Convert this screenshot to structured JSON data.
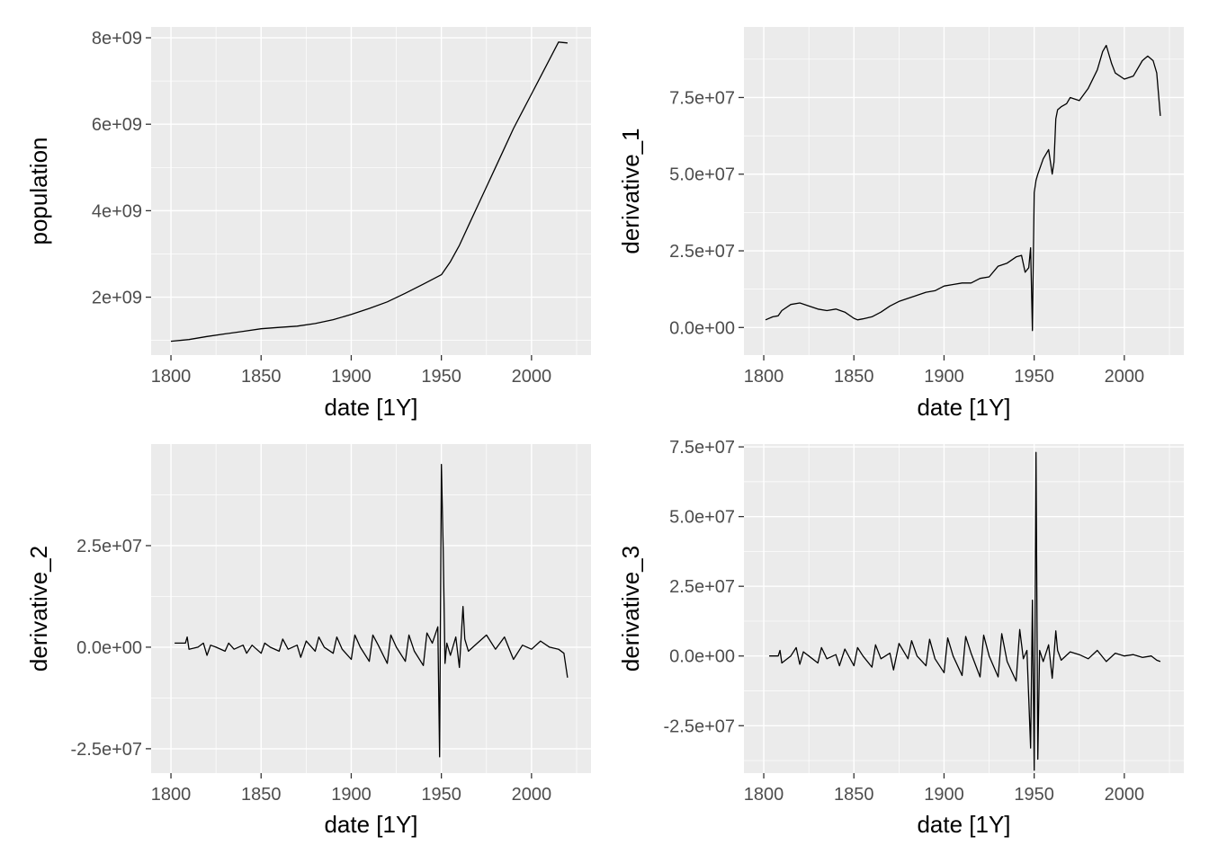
{
  "chart_data": [
    {
      "type": "line",
      "xlabel": "date [1Y]",
      "ylabel": "population",
      "xlim": [
        1789,
        2033
      ],
      "ylim": [
        660000000,
        8250000000
      ],
      "xticks": [
        1800,
        1850,
        1900,
        1950,
        2000
      ],
      "xtick_labels": [
        "1800",
        "1850",
        "1900",
        "1950",
        "2000"
      ],
      "yticks": [
        2000000000,
        4000000000,
        6000000000,
        8000000000
      ],
      "ytick_labels": [
        "2e+09",
        "4e+09",
        "6e+09",
        "8e+09"
      ],
      "grid": true,
      "series": [
        {
          "x": [
            1800,
            1810,
            1820,
            1830,
            1840,
            1850,
            1860,
            1870,
            1880,
            1890,
            1900,
            1910,
            1920,
            1930,
            1940,
            1950,
            1955,
            1960,
            1965,
            1970,
            1975,
            1980,
            1985,
            1990,
            1995,
            2000,
            2005,
            2010,
            2015,
            2020
          ],
          "y": [
            980000000,
            1020000000,
            1090000000,
            1150000000,
            1210000000,
            1270000000,
            1300000000,
            1330000000,
            1390000000,
            1480000000,
            1600000000,
            1740000000,
            1890000000,
            2090000000,
            2300000000,
            2520000000,
            2820000000,
            3200000000,
            3650000000,
            4100000000,
            4550000000,
            5000000000,
            5450000000,
            5900000000,
            6300000000,
            6700000000,
            7100000000,
            7500000000,
            7900000000,
            7880000000
          ]
        }
      ]
    },
    {
      "type": "line",
      "xlabel": "date [1Y]",
      "ylabel": "derivative_1",
      "xlim": [
        1789,
        2033
      ],
      "ylim": [
        -9000000,
        98000000
      ],
      "xticks": [
        1800,
        1850,
        1900,
        1950,
        2000
      ],
      "xtick_labels": [
        "1800",
        "1850",
        "1900",
        "1950",
        "2000"
      ],
      "yticks": [
        0,
        25000000,
        50000000,
        75000000
      ],
      "ytick_labels": [
        "0.0e+00",
        "2.5e+07",
        "5.0e+07",
        "7.5e+07"
      ],
      "grid": true,
      "series": [
        {
          "x": [
            1801,
            1805,
            1808,
            1810,
            1815,
            1820,
            1825,
            1830,
            1835,
            1840,
            1845,
            1850,
            1852,
            1855,
            1860,
            1865,
            1870,
            1875,
            1880,
            1885,
            1890,
            1895,
            1900,
            1905,
            1910,
            1915,
            1920,
            1925,
            1930,
            1935,
            1940,
            1943,
            1945,
            1947,
            1948,
            1949,
            1950,
            1951,
            1952,
            1955,
            1958,
            1960,
            1961,
            1962,
            1963,
            1965,
            1968,
            1970,
            1975,
            1980,
            1985,
            1988,
            1990,
            1993,
            1995,
            2000,
            2005,
            2010,
            2013,
            2016,
            2018,
            2020
          ],
          "y": [
            2500000,
            3500000,
            3800000,
            5500000,
            7500000,
            8000000,
            7000000,
            6000000,
            5500000,
            6000000,
            5000000,
            3000000,
            2500000,
            2800000,
            3500000,
            5000000,
            7000000,
            8500000,
            9500000,
            10500000,
            11500000,
            12000000,
            13500000,
            14000000,
            14500000,
            14500000,
            16000000,
            16500000,
            20000000,
            21000000,
            23000000,
            23500000,
            18000000,
            19500000,
            26000000,
            -1000000,
            44000000,
            48000000,
            50000000,
            55000000,
            58000000,
            50000000,
            54000000,
            68000000,
            71000000,
            72000000,
            73000000,
            75000000,
            74000000,
            78000000,
            84000000,
            90000000,
            92000000,
            86000000,
            83000000,
            81000000,
            82000000,
            87000000,
            88500000,
            87000000,
            83000000,
            69000000
          ]
        }
      ]
    },
    {
      "type": "line",
      "xlabel": "date [1Y]",
      "ylabel": "derivative_2",
      "xlim": [
        1789,
        2033
      ],
      "ylim": [
        -31000000,
        50000000
      ],
      "xticks": [
        1800,
        1850,
        1900,
        1950,
        2000
      ],
      "xtick_labels": [
        "1800",
        "1850",
        "1900",
        "1950",
        "2000"
      ],
      "yticks": [
        -25000000,
        0,
        25000000
      ],
      "ytick_labels": [
        "-2.5e+07",
        "0.0e+00",
        "2.5e+07"
      ],
      "grid": true,
      "series": [
        {
          "x": [
            1802,
            1808,
            1809,
            1810,
            1815,
            1818,
            1820,
            1822,
            1825,
            1830,
            1832,
            1835,
            1840,
            1842,
            1845,
            1850,
            1852,
            1855,
            1860,
            1862,
            1865,
            1870,
            1872,
            1875,
            1880,
            1882,
            1885,
            1890,
            1892,
            1895,
            1900,
            1902,
            1905,
            1910,
            1912,
            1915,
            1920,
            1922,
            1925,
            1930,
            1932,
            1935,
            1940,
            1942,
            1945,
            1948,
            1949,
            1950,
            1951,
            1952,
            1953,
            1955,
            1958,
            1960,
            1962,
            1963,
            1965,
            1970,
            1975,
            1980,
            1985,
            1990,
            1995,
            2000,
            2005,
            2010,
            2015,
            2018,
            2020
          ],
          "y": [
            1000000,
            1000000,
            2500000,
            -500000,
            0,
            1000000,
            -2000000,
            500000,
            0,
            -1000000,
            1000000,
            -500000,
            500000,
            -1500000,
            500000,
            -1500000,
            1000000,
            0,
            -1000000,
            2000000,
            -500000,
            500000,
            -2500000,
            1500000,
            -1000000,
            2500000,
            0,
            -1500000,
            2500000,
            -500000,
            -3000000,
            3000000,
            0,
            -3500000,
            3000000,
            500000,
            -4000000,
            3000000,
            0,
            -3500000,
            3000000,
            -1000000,
            -4500000,
            3500000,
            1000000,
            5000000,
            -27000000,
            45000000,
            24000000,
            -4000000,
            1000000,
            -2000000,
            2500000,
            -5000000,
            10000000,
            2000000,
            -1000000,
            1000000,
            3000000,
            -500000,
            2500000,
            -3000000,
            500000,
            -500000,
            1500000,
            0,
            -500000,
            -1500000,
            -7500000
          ]
        }
      ]
    },
    {
      "type": "line",
      "xlabel": "date [1Y]",
      "ylabel": "derivative_3",
      "xlim": [
        1789,
        2033
      ],
      "ylim": [
        -42000000,
        76000000
      ],
      "xticks": [
        1800,
        1850,
        1900,
        1950,
        2000
      ],
      "xtick_labels": [
        "1800",
        "1850",
        "1900",
        "1950",
        "2000"
      ],
      "yticks": [
        -25000000,
        0,
        25000000,
        50000000,
        75000000
      ],
      "ytick_labels": [
        "-2.5e+07",
        "0.0e+00",
        "2.5e+07",
        "5.0e+07",
        "7.5e+07"
      ],
      "grid": true,
      "series": [
        {
          "x": [
            1803,
            1808,
            1809,
            1810,
            1815,
            1818,
            1820,
            1822,
            1825,
            1830,
            1832,
            1835,
            1840,
            1842,
            1845,
            1850,
            1852,
            1855,
            1860,
            1862,
            1865,
            1870,
            1872,
            1875,
            1880,
            1882,
            1885,
            1890,
            1892,
            1895,
            1900,
            1902,
            1905,
            1910,
            1912,
            1915,
            1920,
            1922,
            1925,
            1930,
            1932,
            1935,
            1940,
            1942,
            1944,
            1946,
            1948,
            1949,
            1950,
            1951,
            1952,
            1953,
            1955,
            1958,
            1960,
            1962,
            1963,
            1965,
            1970,
            1975,
            1980,
            1985,
            1990,
            1995,
            2000,
            2005,
            2010,
            2015,
            2018,
            2020
          ],
          "y": [
            0,
            0,
            2000000,
            -2500000,
            0,
            3000000,
            -3000000,
            1500000,
            0,
            -2500000,
            3000000,
            -1000000,
            500000,
            -3500000,
            2500000,
            -3500000,
            3000000,
            0,
            -4000000,
            4000000,
            -1000000,
            1000000,
            -5000000,
            4500000,
            -1000000,
            5500000,
            0,
            -3500000,
            6000000,
            -1000000,
            -6000000,
            6500000,
            0,
            -7000000,
            7000000,
            1000000,
            -7500000,
            7500000,
            0,
            -7500000,
            8000000,
            -2000000,
            -9000000,
            9500000,
            -1000000,
            2000000,
            -33000000,
            20000000,
            -41000000,
            73000000,
            -37000000,
            2000000,
            -2000000,
            4000000,
            -8000000,
            9000000,
            2000000,
            -1500000,
            1500000,
            500000,
            -1000000,
            2000000,
            -2000000,
            1000000,
            0,
            500000,
            -500000,
            0,
            -1500000,
            -2000000
          ]
        }
      ]
    }
  ]
}
